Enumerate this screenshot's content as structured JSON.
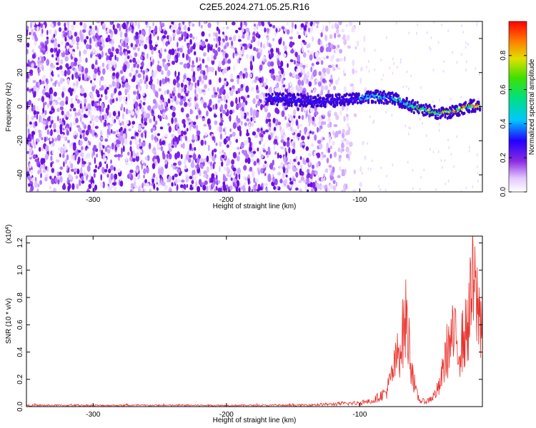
{
  "figure_title": "C2E5.2024.271.05.25.R16",
  "chart_data": [
    {
      "type": "heatmap",
      "title": "",
      "xlabel": "Height of straight line (km)",
      "ylabel": "Frequency (Hz)",
      "xlim": [
        -350,
        -8
      ],
      "ylim": [
        -50,
        50
      ],
      "x_ticks": [
        -300,
        -200,
        -100
      ],
      "y_ticks": [
        -40,
        -20,
        0,
        20,
        40
      ],
      "x_tick_labels": [
        "-300",
        "-200",
        "-100"
      ],
      "y_tick_labels": [
        "-40",
        "-20",
        "0",
        "20",
        "40"
      ],
      "colorbar": {
        "label": "Normalized spectral amplitude",
        "range": [
          0,
          1
        ],
        "ticks": [
          0.0,
          0.2,
          0.4,
          0.6,
          0.8
        ],
        "tick_labels": [
          "0.0",
          "0.2",
          "0.4",
          "0.6",
          "0.8"
        ]
      },
      "ridge": {
        "x": [
          -170,
          -150,
          -130,
          -110,
          -90,
          -75,
          -60,
          -50,
          -40,
          -30,
          -20,
          -10
        ],
        "y": [
          5,
          4,
          3,
          4,
          6,
          5,
          0,
          -2,
          -4,
          -3,
          0,
          1
        ]
      },
      "noise_extent_x": [
        -350,
        -95
      ]
    },
    {
      "type": "line",
      "title": "",
      "xlabel": "Height of straight line (km)",
      "ylabel": "SNR (10 * v/v)",
      "y_exponent_label": "(x10",
      "y_exponent_power": "4",
      "y_exponent_close": ")",
      "xlim": [
        -350,
        -8
      ],
      "ylim": [
        0,
        1.25
      ],
      "x_ticks": [
        -300,
        -200,
        -100
      ],
      "y_ticks": [
        0.0,
        0.2,
        0.4,
        0.6,
        0.8,
        1.0,
        1.2
      ],
      "x_tick_labels": [
        "-300",
        "-200",
        "-100"
      ],
      "y_tick_labels": [
        "0.0",
        "0.2",
        "0.4",
        "0.6",
        "0.8",
        "1.0",
        "1.2"
      ],
      "series": [
        {
          "color": "#e8302a",
          "envelope_x": [
            -350,
            -300,
            -200,
            -150,
            -120,
            -100,
            -90,
            -80,
            -75,
            -70,
            -65,
            -62,
            -58,
            -55,
            -50,
            -45,
            -40,
            -35,
            -30,
            -25,
            -20,
            -15,
            -10,
            -8
          ],
          "envelope_y": [
            0.01,
            0.01,
            0.01,
            0.01,
            0.02,
            0.03,
            0.06,
            0.15,
            0.35,
            0.6,
            0.9,
            0.5,
            0.15,
            0.06,
            0.05,
            0.1,
            0.2,
            0.55,
            0.7,
            0.6,
            0.75,
            1.22,
            0.9,
            1.0
          ]
        }
      ]
    }
  ]
}
